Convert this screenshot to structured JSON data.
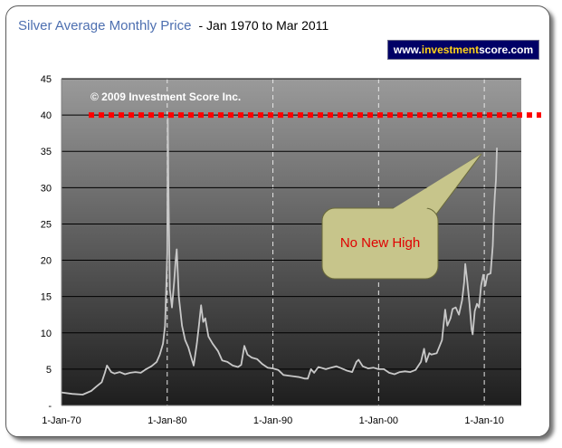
{
  "title": "Silver Average Monthly Price",
  "subtitle": "- Jan 1970 to Mar 2011",
  "badge": {
    "prefix": "www.",
    "highlight": "investment",
    "suffix": "score.com"
  },
  "copyright": "© 2009 Investment Score Inc.",
  "annotation": "No New High",
  "colors": {
    "title": "#4d6fb0",
    "reference_line": "#ff0000",
    "series": "#c8c8c8",
    "badge_bg": "#000066",
    "badge_highlight": "#ffd21a"
  },
  "chart_data": {
    "type": "line",
    "title": "Silver Average Monthly Price - Jan 1970 to Mar 2011",
    "xlabel": "",
    "ylabel": "",
    "xlim": [
      1970.0,
      2013.5
    ],
    "ylim": [
      0,
      45
    ],
    "yticks": [
      0,
      5,
      10,
      15,
      20,
      25,
      30,
      35,
      40,
      45
    ],
    "ytick_labels": [
      "-",
      "5",
      "10",
      "15",
      "20",
      "25",
      "30",
      "35",
      "40",
      "45"
    ],
    "xticks": [
      1970,
      1980,
      1990,
      2000,
      2010
    ],
    "xtick_labels": [
      "1-Jan-70",
      "1-Jan-80",
      "1-Jan-90",
      "1-Jan-00",
      "1-Jan-10"
    ],
    "grid": true,
    "legend": "none",
    "reference_line": {
      "y": 40,
      "style": "dotted"
    },
    "series": [
      {
        "values": [
          [
            1970.0,
            1.8
          ],
          [
            1971.0,
            1.6
          ],
          [
            1972.0,
            1.5
          ],
          [
            1972.8,
            2.0
          ],
          [
            1973.3,
            2.6
          ],
          [
            1973.8,
            3.2
          ],
          [
            1974.1,
            4.5
          ],
          [
            1974.3,
            5.5
          ],
          [
            1974.7,
            4.6
          ],
          [
            1975.0,
            4.4
          ],
          [
            1975.5,
            4.6
          ],
          [
            1976.0,
            4.3
          ],
          [
            1976.5,
            4.5
          ],
          [
            1977.0,
            4.6
          ],
          [
            1977.5,
            4.5
          ],
          [
            1978.0,
            5.0
          ],
          [
            1978.5,
            5.4
          ],
          [
            1979.0,
            6.0
          ],
          [
            1979.3,
            7.0
          ],
          [
            1979.6,
            8.5
          ],
          [
            1979.8,
            11.0
          ],
          [
            1979.9,
            16.0
          ],
          [
            1980.0,
            21.0
          ],
          [
            1980.05,
            39.5
          ],
          [
            1980.12,
            29.0
          ],
          [
            1980.25,
            16.0
          ],
          [
            1980.45,
            13.5
          ],
          [
            1980.65,
            17.0
          ],
          [
            1980.8,
            20.0
          ],
          [
            1980.9,
            21.5
          ],
          [
            1981.1,
            15.0
          ],
          [
            1981.4,
            11.0
          ],
          [
            1981.7,
            9.0
          ],
          [
            1982.0,
            8.0
          ],
          [
            1982.3,
            6.5
          ],
          [
            1982.5,
            5.5
          ],
          [
            1982.8,
            8.5
          ],
          [
            1983.0,
            11.0
          ],
          [
            1983.2,
            13.8
          ],
          [
            1983.4,
            11.5
          ],
          [
            1983.6,
            12.0
          ],
          [
            1983.9,
            9.5
          ],
          [
            1984.3,
            8.5
          ],
          [
            1984.8,
            7.5
          ],
          [
            1985.2,
            6.2
          ],
          [
            1985.7,
            6.0
          ],
          [
            1986.2,
            5.5
          ],
          [
            1986.7,
            5.3
          ],
          [
            1987.0,
            5.6
          ],
          [
            1987.3,
            8.2
          ],
          [
            1987.6,
            7.0
          ],
          [
            1988.0,
            6.6
          ],
          [
            1988.5,
            6.4
          ],
          [
            1989.0,
            5.7
          ],
          [
            1989.5,
            5.2
          ],
          [
            1990.0,
            5.1
          ],
          [
            1990.5,
            4.9
          ],
          [
            1991.0,
            4.2
          ],
          [
            1991.5,
            4.1
          ],
          [
            1992.0,
            4.0
          ],
          [
            1992.5,
            3.9
          ],
          [
            1993.0,
            3.7
          ],
          [
            1993.3,
            3.7
          ],
          [
            1993.6,
            5.0
          ],
          [
            1993.9,
            4.5
          ],
          [
            1994.3,
            5.3
          ],
          [
            1995.0,
            5.0
          ],
          [
            1995.5,
            5.2
          ],
          [
            1996.0,
            5.4
          ],
          [
            1996.5,
            5.1
          ],
          [
            1997.0,
            4.8
          ],
          [
            1997.5,
            4.6
          ],
          [
            1997.9,
            6.0
          ],
          [
            1998.1,
            6.3
          ],
          [
            1998.5,
            5.4
          ],
          [
            1999.0,
            5.1
          ],
          [
            1999.5,
            5.2
          ],
          [
            2000.0,
            5.0
          ],
          [
            2000.5,
            5.0
          ],
          [
            2001.0,
            4.5
          ],
          [
            2001.5,
            4.3
          ],
          [
            2002.0,
            4.6
          ],
          [
            2002.5,
            4.7
          ],
          [
            2003.0,
            4.6
          ],
          [
            2003.5,
            4.9
          ],
          [
            2004.0,
            6.0
          ],
          [
            2004.3,
            7.8
          ],
          [
            2004.5,
            6.0
          ],
          [
            2004.8,
            7.2
          ],
          [
            2005.0,
            7.0
          ],
          [
            2005.5,
            7.2
          ],
          [
            2006.0,
            9.0
          ],
          [
            2006.3,
            13.2
          ],
          [
            2006.5,
            11.0
          ],
          [
            2006.8,
            12.0
          ],
          [
            2007.0,
            13.3
          ],
          [
            2007.3,
            13.5
          ],
          [
            2007.6,
            12.5
          ],
          [
            2007.9,
            14.5
          ],
          [
            2008.1,
            17.0
          ],
          [
            2008.2,
            19.5
          ],
          [
            2008.4,
            17.0
          ],
          [
            2008.6,
            14.0
          ],
          [
            2008.8,
            10.5
          ],
          [
            2008.9,
            9.8
          ],
          [
            2009.1,
            13.0
          ],
          [
            2009.3,
            14.0
          ],
          [
            2009.5,
            13.5
          ],
          [
            2009.7,
            16.5
          ],
          [
            2009.9,
            18.0
          ],
          [
            2010.1,
            16.5
          ],
          [
            2010.3,
            18.0
          ],
          [
            2010.6,
            18.2
          ],
          [
            2010.8,
            22.0
          ],
          [
            2010.9,
            26.0
          ],
          [
            2011.0,
            29.0
          ],
          [
            2011.1,
            31.0
          ],
          [
            2011.2,
            35.5
          ]
        ]
      }
    ]
  }
}
